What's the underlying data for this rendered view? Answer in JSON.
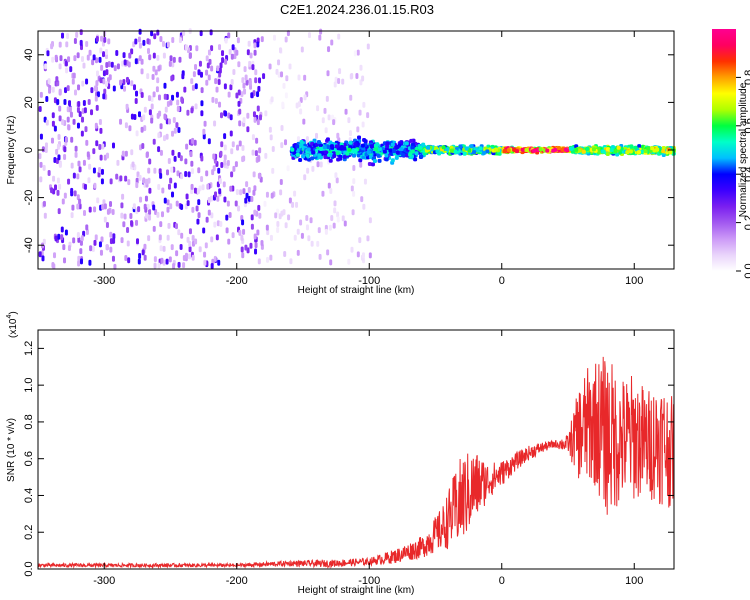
{
  "title": "C2E1.2024.236.01.15.R03",
  "colors": {
    "snr_line": "#e8282a",
    "plot_bg": "#ffffff",
    "frame": "#000000",
    "colormap": [
      "#ffffff",
      "#e9d4fb",
      "#cc99f7",
      "#a259f0",
      "#7a1ff0",
      "#3b00ff",
      "#0000ff",
      "#00c0ff",
      "#00ffc8",
      "#00ff40",
      "#b0ff00",
      "#ffff00",
      "#ffa000",
      "#ff3000",
      "#ff0060",
      "#ff0090"
    ]
  },
  "chart_data": [
    {
      "type": "heatmap",
      "title": "C2E1.2024.236.01.15.R03",
      "xlabel": "Height of straight line (km)",
      "ylabel": "Frequency (Hz)",
      "xlim": [
        -350,
        130
      ],
      "ylim": [
        -50,
        50
      ],
      "x_ticks": [
        -300,
        -200,
        -100,
        0,
        100
      ],
      "y_ticks": [
        -40,
        -20,
        0,
        20,
        40
      ],
      "colorbar": {
        "label": "Normalized spectral amplitude",
        "range": [
          0,
          1
        ],
        "ticks": [
          "0.0",
          "0.2",
          "0.4",
          "0.6",
          "0.8"
        ],
        "tick_values": [
          0.0,
          0.2,
          0.4,
          0.6,
          0.8
        ]
      },
      "regions": [
        {
          "x_start": -350,
          "x_end": -180,
          "freq_spread": 50,
          "amplitude": 0.25
        },
        {
          "x_start": -180,
          "x_end": -100,
          "freq_spread": 50,
          "amplitude": 0.1
        },
        {
          "x_start": -160,
          "x_end": -60,
          "freq_spread": 8,
          "amplitude": 0.5
        },
        {
          "x_start": -60,
          "x_end": 0,
          "freq_spread": 3,
          "amplitude": 0.65
        },
        {
          "x_start": 0,
          "x_end": 50,
          "freq_spread": 1.5,
          "amplitude": 0.95
        },
        {
          "x_start": 50,
          "x_end": 130,
          "freq_spread": 3,
          "amplitude": 0.7
        }
      ]
    },
    {
      "type": "line",
      "xlabel": "Height of straight line (km)",
      "ylabel": "SNR (10 * v/v)",
      "y_multiplier": "(x10",
      "y_multiplier_exp": "4",
      "y_multiplier_close": ")",
      "xlim": [
        -350,
        130
      ],
      "ylim": [
        0,
        1.3
      ],
      "x_ticks": [
        -300,
        -200,
        -100,
        0,
        100
      ],
      "y_ticks": [
        "0.0",
        "0.2",
        "0.4",
        "0.6",
        "0.8",
        "1.0",
        "1.2"
      ],
      "y_tick_values": [
        0.0,
        0.2,
        0.4,
        0.6,
        0.8,
        1.0,
        1.2
      ],
      "series": [
        {
          "x": [
            -350,
            -300,
            -250,
            -200,
            -160,
            -130,
            -100,
            -80,
            -60,
            -45,
            -30,
            -20,
            -10,
            0,
            10,
            20,
            30,
            40,
            50,
            60,
            70,
            80,
            90,
            100,
            110,
            120,
            130
          ],
          "y": [
            0.02,
            0.02,
            0.02,
            0.02,
            0.03,
            0.03,
            0.04,
            0.07,
            0.12,
            0.22,
            0.38,
            0.45,
            0.48,
            0.52,
            0.58,
            0.63,
            0.66,
            0.68,
            0.68,
            0.75,
            0.8,
            0.72,
            0.7,
            0.72,
            0.68,
            0.7,
            0.62
          ],
          "noise": [
            0.01,
            0.01,
            0.01,
            0.01,
            0.015,
            0.02,
            0.02,
            0.04,
            0.06,
            0.12,
            0.25,
            0.2,
            0.1,
            0.07,
            0.05,
            0.04,
            0.03,
            0.02,
            0.05,
            0.3,
            0.35,
            0.45,
            0.35,
            0.35,
            0.3,
            0.35,
            0.3
          ]
        }
      ]
    }
  ]
}
